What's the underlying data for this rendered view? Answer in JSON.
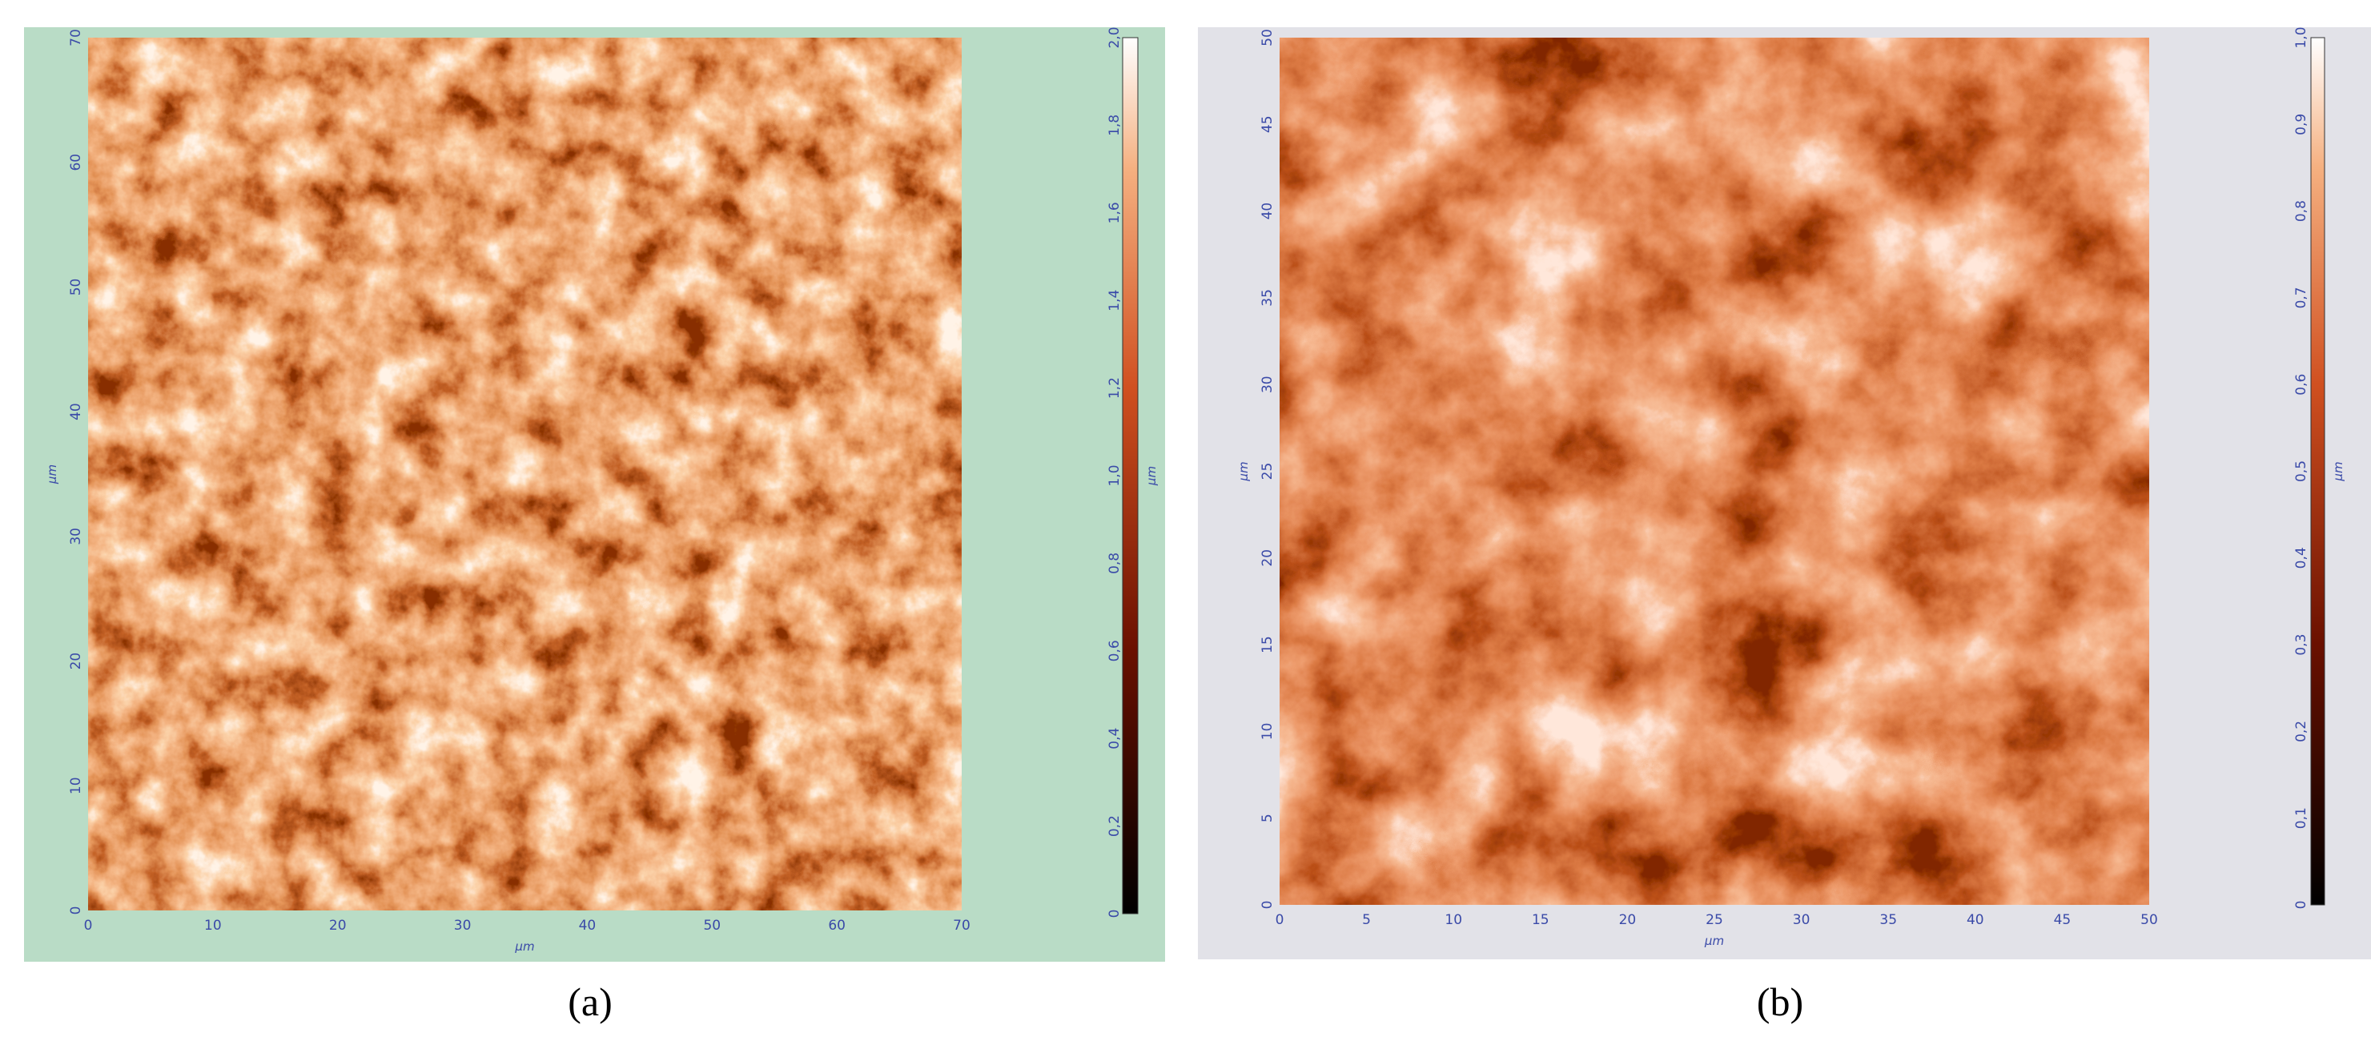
{
  "panels": [
    {
      "x_ticks": [
        "0",
        "10",
        "20",
        "30",
        "40",
        "50",
        "60",
        "70"
      ],
      "y_ticks": [
        "0",
        "10",
        "20",
        "30",
        "40",
        "50",
        "60",
        "70"
      ],
      "x_unit": "μm",
      "y_unit": "μm",
      "colorbar_ticks": [
        "0",
        "0,2",
        "0,4",
        "0,6",
        "0,8",
        "1,0",
        "1,2",
        "1,4",
        "1,6",
        "1,8",
        "2,0"
      ],
      "colorbar_unit": "μm",
      "caption": "(a)"
    },
    {
      "x_ticks": [
        "0",
        "5",
        "10",
        "15",
        "20",
        "25",
        "30",
        "35",
        "40",
        "45",
        "50"
      ],
      "y_ticks": [
        "0",
        "5",
        "10",
        "15",
        "20",
        "25",
        "30",
        "35",
        "40",
        "45",
        "50"
      ],
      "x_unit": "μm",
      "y_unit": "μm",
      "colorbar_ticks": [
        "0",
        "0,1",
        "0,2",
        "0,3",
        "0,4",
        "0,5",
        "0,6",
        "0,7",
        "0,8",
        "0,9",
        "1,0"
      ],
      "colorbar_unit": "μm",
      "caption": "(b)"
    }
  ]
}
